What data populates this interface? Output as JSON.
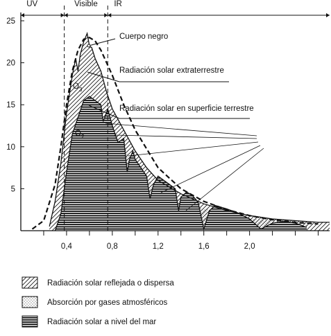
{
  "chart_data": {
    "type": "area",
    "xlabel": "",
    "ylabel": "",
    "xlim": [
      0,
      2.7
    ],
    "ylim": [
      0,
      25
    ],
    "x_ticks": [
      "0,4",
      "0,8",
      "1,2",
      "1,6",
      "2,0"
    ],
    "x_tick_values": [
      0.4,
      0.8,
      1.2,
      1.6,
      2.0
    ],
    "y_ticks": [
      "5",
      "10",
      "15",
      "20",
      "25"
    ],
    "y_tick_values": [
      5,
      10,
      15,
      20,
      25
    ],
    "bands": [
      {
        "label": "UV",
        "from": 0.0,
        "to": 0.38
      },
      {
        "label": "Visible",
        "from": 0.38,
        "to": 0.76
      },
      {
        "label": "IR",
        "from": 0.76,
        "to": 2.7
      }
    ],
    "annotations": [
      {
        "text": "Cuerpo negro"
      },
      {
        "text": "Radiación solar extraterrestre"
      },
      {
        "text": "Radiación solar en superficie terrestre"
      },
      {
        "text": "O",
        "sub": "3"
      },
      {
        "text": "O",
        "sub": "2"
      }
    ],
    "series": [
      {
        "name": "Cuerpo negro",
        "style": "dashed",
        "x": [
          0.1,
          0.2,
          0.3,
          0.35,
          0.4,
          0.45,
          0.5,
          0.55,
          0.6,
          0.65,
          0.7,
          0.8,
          0.9,
          1.0,
          1.2,
          1.4,
          1.6,
          1.8,
          2.0,
          2.2,
          2.4,
          2.6
        ],
        "y": [
          0.2,
          1.2,
          5.5,
          10.0,
          15.0,
          19.0,
          21.5,
          22.8,
          23.0,
          22.6,
          21.5,
          18.5,
          15.0,
          12.0,
          7.5,
          5.0,
          3.5,
          2.5,
          1.8,
          1.3,
          1.0,
          0.8
        ]
      },
      {
        "name": "Radiación solar extraterrestre",
        "style": "solid",
        "x": [
          0.25,
          0.3,
          0.35,
          0.4,
          0.45,
          0.48,
          0.5,
          0.52,
          0.55,
          0.58,
          0.6,
          0.62,
          0.65,
          0.7,
          0.75,
          0.8,
          0.9,
          1.0,
          1.1,
          1.2,
          1.4,
          1.6,
          1.8,
          2.0,
          2.2,
          2.4,
          2.6,
          2.7
        ],
        "y": [
          0.5,
          3.5,
          8.0,
          14.0,
          18.5,
          20.5,
          19.0,
          21.0,
          22.5,
          23.5,
          22.0,
          21.8,
          20.5,
          19.0,
          16.5,
          14.5,
          12.0,
          9.5,
          7.5,
          6.0,
          4.4,
          3.2,
          2.4,
          1.8,
          1.4,
          1.2,
          1.0,
          1.0
        ]
      },
      {
        "name": "Radiación solar en superficie terrestre",
        "style": "solid",
        "x": [
          0.3,
          0.35,
          0.4,
          0.45,
          0.5,
          0.55,
          0.6,
          0.65,
          0.7,
          0.72,
          0.76,
          0.8,
          0.85,
          0.9,
          0.93,
          0.95,
          0.98,
          1.0,
          1.05,
          1.1,
          1.13,
          1.16,
          1.2,
          1.25,
          1.3,
          1.35,
          1.38,
          1.4,
          1.45,
          1.5,
          1.55,
          1.6,
          1.65,
          1.7,
          1.8,
          1.9,
          2.0,
          2.1,
          2.2,
          2.3,
          2.4,
          2.5
        ],
        "y": [
          0.0,
          2.0,
          7.0,
          11.5,
          13.5,
          15.5,
          16.0,
          15.5,
          15.0,
          13.0,
          14.5,
          12.5,
          10.5,
          11.0,
          7.0,
          8.5,
          9.5,
          8.5,
          7.5,
          6.5,
          3.8,
          5.5,
          6.5,
          6.0,
          5.5,
          5.0,
          2.4,
          4.0,
          4.6,
          4.2,
          3.4,
          0.2,
          2.4,
          3.0,
          2.6,
          2.1,
          1.4,
          0.2,
          0.9,
          1.1,
          0.9,
          0.4
        ]
      }
    ],
    "legend": {
      "position": "bottom-left",
      "entries": [
        {
          "label": "Radiación solar reflejada o dispersa",
          "pattern": "diagonal-hatch"
        },
        {
          "label": "Absorción por gases atmosféricos",
          "pattern": "dots"
        },
        {
          "label": "Radiación solar a nivel del mar",
          "pattern": "horizontal-lines"
        }
      ]
    },
    "grid": false
  }
}
